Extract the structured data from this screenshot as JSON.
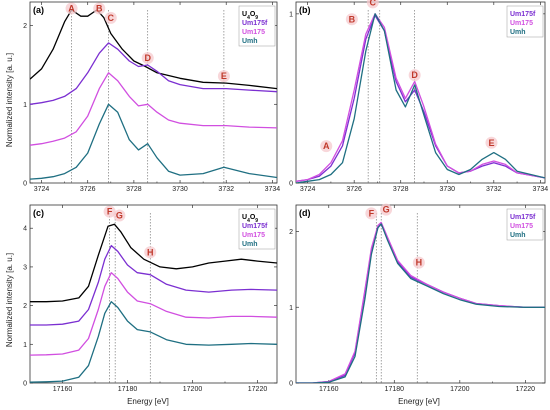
{
  "colors": {
    "U4O9": "#000000",
    "Um175f": "#7b2fd1",
    "Um175": "#d14fe0",
    "Umh": "#1f6f82",
    "annotation": "#c0392b",
    "annotation_bg": "#f6c9cd",
    "frame": "#333333"
  },
  "ylabel": "Normalized intensity [a. u.]",
  "xlabel": "Energy [eV]",
  "chart_data": [
    {
      "panel": "(a)",
      "type": "line",
      "xlim": [
        3723.5,
        3734.2
      ],
      "ylim": [
        0,
        2.3
      ],
      "xticks": [
        3724,
        3726,
        3728,
        3730,
        3732,
        3734
      ],
      "yticks": [
        0,
        1,
        2
      ],
      "legend": [
        "U4O9",
        "Um175f",
        "Um175",
        "Umh"
      ],
      "legend_position": "top-right",
      "vlines": [
        3725.3,
        3726.9,
        3728.6,
        3731.9
      ],
      "annotations": [
        {
          "label": "A",
          "x": 3725.3,
          "y": 2.18
        },
        {
          "label": "B",
          "x": 3726.5,
          "y": 2.18
        },
        {
          "label": "C",
          "x": 3727.0,
          "y": 2.06
        },
        {
          "label": "D",
          "x": 3728.6,
          "y": 1.55
        },
        {
          "label": "E",
          "x": 3731.9,
          "y": 1.32
        }
      ],
      "series": [
        {
          "name": "U4O9",
          "x": [
            3723.5,
            3724,
            3724.5,
            3725,
            3725.3,
            3725.7,
            3726,
            3726.4,
            3726.7,
            3727,
            3727.5,
            3728,
            3728.5,
            3729,
            3730,
            3731,
            3732,
            3733,
            3734.2
          ],
          "y": [
            1.32,
            1.45,
            1.7,
            2.05,
            2.2,
            2.12,
            2.12,
            2.2,
            2.1,
            1.9,
            1.7,
            1.55,
            1.48,
            1.4,
            1.33,
            1.28,
            1.27,
            1.24,
            1.2
          ]
        },
        {
          "name": "Um175f",
          "x": [
            3723.5,
            3724,
            3724.5,
            3725,
            3725.5,
            3726,
            3726.5,
            3726.9,
            3727.3,
            3727.8,
            3728.2,
            3728.6,
            3729,
            3729.5,
            3730,
            3731,
            3732,
            3733,
            3734.2
          ],
          "y": [
            1.0,
            1.02,
            1.05,
            1.1,
            1.2,
            1.4,
            1.65,
            1.78,
            1.7,
            1.55,
            1.48,
            1.5,
            1.42,
            1.3,
            1.25,
            1.2,
            1.2,
            1.18,
            1.16
          ]
        },
        {
          "name": "Um175",
          "x": [
            3723.5,
            3724,
            3724.5,
            3725,
            3725.5,
            3726,
            3726.5,
            3726.9,
            3727.3,
            3727.8,
            3728.2,
            3728.6,
            3729,
            3729.5,
            3730,
            3731,
            3732,
            3733,
            3734.2
          ],
          "y": [
            0.48,
            0.5,
            0.53,
            0.57,
            0.65,
            0.85,
            1.2,
            1.4,
            1.3,
            1.1,
            0.98,
            1.0,
            0.9,
            0.8,
            0.76,
            0.73,
            0.73,
            0.71,
            0.7
          ]
        },
        {
          "name": "Umh",
          "x": [
            3723.5,
            3724,
            3724.5,
            3725,
            3725.5,
            3726,
            3726.5,
            3726.9,
            3727.3,
            3727.8,
            3728.2,
            3728.6,
            3729,
            3729.5,
            3730,
            3731,
            3731.9,
            3733,
            3734.2
          ],
          "y": [
            0.05,
            0.06,
            0.08,
            0.12,
            0.2,
            0.38,
            0.75,
            1.0,
            0.9,
            0.55,
            0.42,
            0.5,
            0.32,
            0.15,
            0.1,
            0.12,
            0.2,
            0.12,
            0.07
          ]
        }
      ]
    },
    {
      "panel": "(b)",
      "type": "line",
      "xlim": [
        3723.5,
        3734.2
      ],
      "ylim": [
        0,
        1.07
      ],
      "xticks": [
        3724,
        3726,
        3728,
        3730,
        3732,
        3734
      ],
      "yticks": [
        0,
        1
      ],
      "legend": [
        "Um175f",
        "Um175",
        "Umh"
      ],
      "legend_position": "top-right",
      "vlines": [
        3726.6,
        3727.1,
        3728.6
      ],
      "annotations": [
        {
          "label": "A",
          "x": 3724.8,
          "y": 0.2
        },
        {
          "label": "B",
          "x": 3725.9,
          "y": 0.95
        },
        {
          "label": "C",
          "x": 3726.8,
          "y": 1.05
        },
        {
          "label": "D",
          "x": 3728.6,
          "y": 0.62
        },
        {
          "label": "E",
          "x": 3731.9,
          "y": 0.22
        }
      ],
      "series": [
        {
          "name": "Um175f",
          "x": [
            3723.5,
            3724,
            3724.5,
            3725,
            3725.5,
            3726,
            3726.5,
            3726.9,
            3727.3,
            3727.8,
            3728.2,
            3728.6,
            3729,
            3729.5,
            3730,
            3730.5,
            3731,
            3731.5,
            3732,
            3732.5,
            3733,
            3734.2
          ],
          "y": [
            0.01,
            0.02,
            0.04,
            0.1,
            0.22,
            0.5,
            0.85,
            0.99,
            0.9,
            0.6,
            0.48,
            0.55,
            0.42,
            0.22,
            0.1,
            0.06,
            0.07,
            0.1,
            0.12,
            0.1,
            0.06,
            0.03
          ]
        },
        {
          "name": "Um175",
          "x": [
            3723.5,
            3724,
            3724.5,
            3725,
            3725.5,
            3726,
            3726.5,
            3726.9,
            3727.3,
            3727.8,
            3728.2,
            3728.6,
            3729,
            3729.5,
            3730,
            3730.5,
            3731,
            3731.5,
            3732,
            3732.5,
            3733,
            3734.2
          ],
          "y": [
            0.01,
            0.02,
            0.05,
            0.12,
            0.25,
            0.55,
            0.88,
            1.0,
            0.92,
            0.62,
            0.5,
            0.6,
            0.45,
            0.23,
            0.1,
            0.06,
            0.07,
            0.11,
            0.13,
            0.11,
            0.06,
            0.03
          ]
        },
        {
          "name": "Umh",
          "x": [
            3723.5,
            3724,
            3724.5,
            3725,
            3725.5,
            3726,
            3726.5,
            3726.9,
            3727.3,
            3727.8,
            3728.2,
            3728.6,
            3729,
            3729.5,
            3730,
            3730.5,
            3731,
            3731.5,
            3732,
            3732.5,
            3733,
            3734.2
          ],
          "y": [
            0.0,
            0.01,
            0.02,
            0.05,
            0.12,
            0.38,
            0.78,
            1.0,
            0.9,
            0.55,
            0.45,
            0.58,
            0.4,
            0.18,
            0.08,
            0.05,
            0.08,
            0.14,
            0.18,
            0.14,
            0.07,
            0.03
          ]
        }
      ]
    },
    {
      "panel": "(c)",
      "type": "line",
      "xlim": [
        17150,
        17226
      ],
      "ylim": [
        0,
        4.6
      ],
      "xticks": [
        17160,
        17180,
        17200,
        17220
      ],
      "yticks": [
        0,
        1,
        2,
        3,
        4
      ],
      "legend": [
        "U4O9",
        "Um175f",
        "Um175",
        "Umh"
      ],
      "legend_position": "top-right",
      "vlines": [
        17174.5,
        17176.2,
        17187
      ],
      "annotations": [
        {
          "label": "F",
          "x": 17174.5,
          "y": 4.35
        },
        {
          "label": "G",
          "x": 17177.5,
          "y": 4.25
        },
        {
          "label": "H",
          "x": 17187,
          "y": 3.3
        }
      ],
      "series": [
        {
          "name": "U4O9",
          "x": [
            17150,
            17155,
            17160,
            17165,
            17168,
            17171,
            17174,
            17176,
            17178,
            17181,
            17185,
            17190,
            17195,
            17200,
            17205,
            17210,
            17215,
            17220,
            17226
          ],
          "y": [
            2.1,
            2.1,
            2.12,
            2.2,
            2.5,
            3.3,
            4.05,
            4.1,
            3.9,
            3.5,
            3.2,
            3.0,
            2.95,
            3.0,
            3.1,
            3.15,
            3.2,
            3.15,
            3.1
          ]
        },
        {
          "name": "Um175f",
          "x": [
            17150,
            17155,
            17160,
            17165,
            17168,
            17171,
            17173,
            17175,
            17177,
            17180,
            17183,
            17187,
            17192,
            17198,
            17205,
            17212,
            17218,
            17226
          ],
          "y": [
            1.5,
            1.5,
            1.52,
            1.6,
            1.9,
            2.6,
            3.2,
            3.55,
            3.4,
            3.05,
            2.85,
            2.8,
            2.55,
            2.4,
            2.35,
            2.4,
            2.42,
            2.4
          ]
        },
        {
          "name": "Um175",
          "x": [
            17150,
            17155,
            17160,
            17165,
            17168,
            17171,
            17173,
            17175,
            17177,
            17180,
            17183,
            17187,
            17192,
            17198,
            17205,
            17212,
            17218,
            17226
          ],
          "y": [
            0.72,
            0.73,
            0.75,
            0.85,
            1.15,
            1.9,
            2.5,
            2.85,
            2.7,
            2.35,
            2.12,
            2.05,
            1.85,
            1.7,
            1.68,
            1.72,
            1.72,
            1.7
          ]
        },
        {
          "name": "Umh",
          "x": [
            17150,
            17155,
            17160,
            17165,
            17168,
            17171,
            17173,
            17175,
            17177,
            17180,
            17183,
            17187,
            17192,
            17198,
            17205,
            17212,
            17218,
            17226
          ],
          "y": [
            0.02,
            0.03,
            0.05,
            0.15,
            0.45,
            1.2,
            1.8,
            2.1,
            1.95,
            1.6,
            1.38,
            1.32,
            1.12,
            1.0,
            0.98,
            1.0,
            1.02,
            1.0
          ]
        }
      ]
    },
    {
      "panel": "(d)",
      "type": "line",
      "xlim": [
        17150,
        17226
      ],
      "ylim": [
        0,
        2.35
      ],
      "xticks": [
        17160,
        17180,
        17200,
        17220
      ],
      "yticks": [
        0,
        1,
        2
      ],
      "legend": [
        "Um175f",
        "Um175",
        "Umh"
      ],
      "legend_position": "top-right",
      "vlines": [
        17174.5,
        17176,
        17187
      ],
      "annotations": [
        {
          "label": "F",
          "x": 17173,
          "y": 2.2
        },
        {
          "label": "G",
          "x": 17177.5,
          "y": 2.25
        },
        {
          "label": "H",
          "x": 17187.5,
          "y": 1.55
        }
      ],
      "series": [
        {
          "name": "Um175f",
          "x": [
            17150,
            17155,
            17160,
            17165,
            17168,
            17171,
            17173,
            17175,
            17176,
            17178,
            17181,
            17185,
            17190,
            17195,
            17200,
            17205,
            17212,
            17220,
            17226
          ],
          "y": [
            0.0,
            0.0,
            0.02,
            0.1,
            0.4,
            1.2,
            1.75,
            2.05,
            2.1,
            1.9,
            1.6,
            1.4,
            1.3,
            1.2,
            1.12,
            1.05,
            1.02,
            1.0,
            1.0
          ]
        },
        {
          "name": "Um175",
          "x": [
            17150,
            17155,
            17160,
            17165,
            17168,
            17171,
            17173,
            17175,
            17176,
            17178,
            17181,
            17185,
            17190,
            17195,
            17200,
            17205,
            17212,
            17220,
            17226
          ],
          "y": [
            0.0,
            0.0,
            0.02,
            0.12,
            0.42,
            1.22,
            1.78,
            2.08,
            2.12,
            1.92,
            1.62,
            1.42,
            1.3,
            1.2,
            1.12,
            1.05,
            1.02,
            1.0,
            1.0
          ]
        },
        {
          "name": "Umh",
          "x": [
            17150,
            17155,
            17160,
            17165,
            17168,
            17171,
            17173,
            17175,
            17176,
            17178,
            17181,
            17185,
            17190,
            17195,
            17200,
            17205,
            17212,
            17220,
            17226
          ],
          "y": [
            0.0,
            0.0,
            0.01,
            0.08,
            0.35,
            1.1,
            1.7,
            2.05,
            2.1,
            1.88,
            1.58,
            1.38,
            1.28,
            1.18,
            1.1,
            1.04,
            1.01,
            1.0,
            1.0
          ]
        }
      ]
    }
  ]
}
